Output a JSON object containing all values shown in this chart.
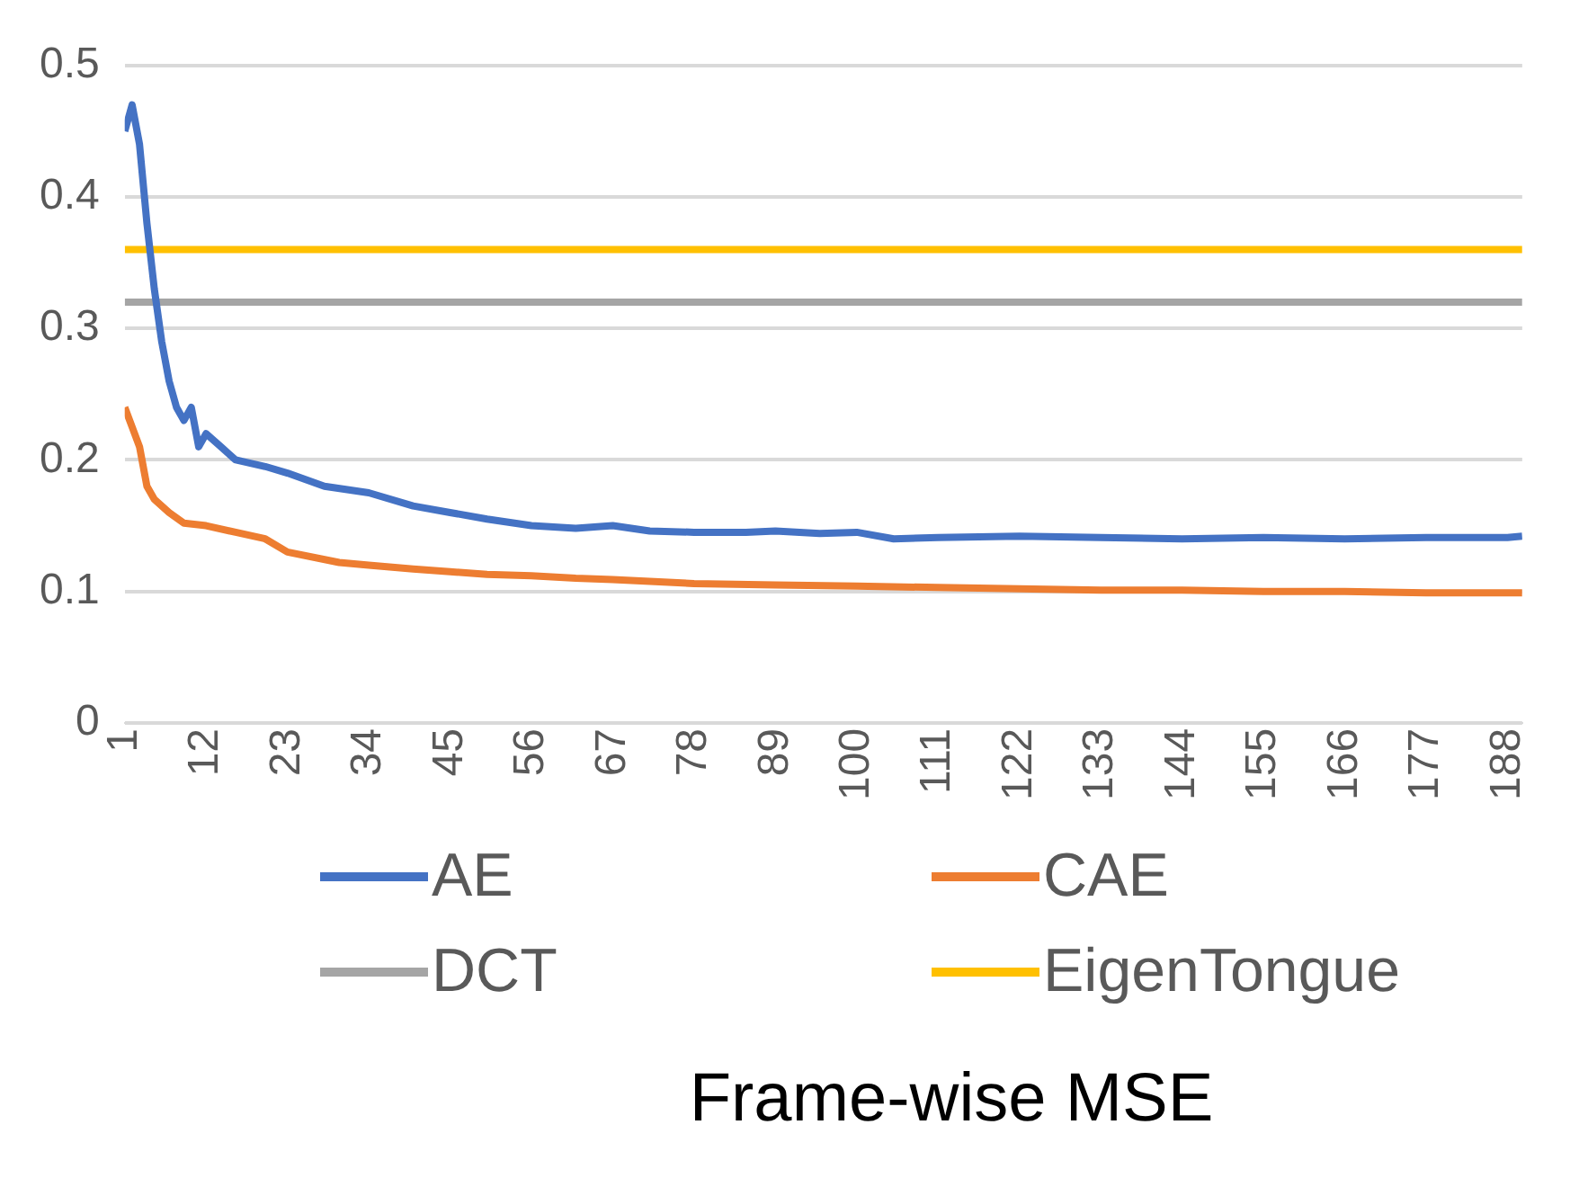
{
  "chart_data": {
    "type": "line",
    "title": "Frame-wise MSE",
    "xlim": [
      1,
      190
    ],
    "xticks": [
      1,
      12,
      23,
      34,
      45,
      56,
      67,
      78,
      89,
      100,
      111,
      122,
      133,
      144,
      155,
      166,
      177,
      188
    ],
    "ylim": [
      0,
      0.5
    ],
    "yticks": [
      0,
      0.1,
      0.2,
      0.3,
      0.4,
      0.5
    ],
    "grid": "y",
    "legend": "bottom",
    "marker": "none",
    "line_style": "solid",
    "series": [
      {
        "name": "AE",
        "color": "#4472c4",
        "x": [
          1,
          2,
          3,
          4,
          5,
          6,
          7,
          8,
          9,
          10,
          11,
          12,
          14,
          16,
          20,
          23,
          28,
          34,
          40,
          45,
          50,
          56,
          62,
          67,
          72,
          78,
          85,
          89,
          95,
          100,
          105,
          111,
          122,
          133,
          144,
          155,
          166,
          177,
          188,
          190
        ],
        "values": [
          0.45,
          0.47,
          0.44,
          0.38,
          0.33,
          0.29,
          0.26,
          0.24,
          0.23,
          0.24,
          0.21,
          0.22,
          0.21,
          0.2,
          0.195,
          0.19,
          0.18,
          0.175,
          0.165,
          0.16,
          0.155,
          0.15,
          0.148,
          0.15,
          0.146,
          0.145,
          0.145,
          0.146,
          0.144,
          0.145,
          0.14,
          0.141,
          0.142,
          0.141,
          0.14,
          0.141,
          0.14,
          0.141,
          0.141,
          0.142
        ]
      },
      {
        "name": "CAE",
        "color": "#ed7d31",
        "x": [
          1,
          2,
          3,
          4,
          5,
          7,
          9,
          12,
          16,
          20,
          23,
          30,
          34,
          40,
          45,
          50,
          56,
          62,
          67,
          78,
          89,
          100,
          111,
          122,
          133,
          144,
          155,
          166,
          177,
          188,
          190
        ],
        "values": [
          0.24,
          0.225,
          0.21,
          0.18,
          0.17,
          0.16,
          0.152,
          0.15,
          0.145,
          0.14,
          0.13,
          0.122,
          0.12,
          0.117,
          0.115,
          0.113,
          0.112,
          0.11,
          0.109,
          0.106,
          0.105,
          0.104,
          0.103,
          0.102,
          0.101,
          0.101,
          0.1,
          0.1,
          0.099,
          0.099,
          0.099
        ]
      },
      {
        "name": "DCT",
        "color": "#a5a5a5",
        "x": [
          1,
          190
        ],
        "values": [
          0.32,
          0.32
        ]
      },
      {
        "name": "EigenTongue",
        "color": "#ffc000",
        "x": [
          1,
          190
        ],
        "values": [
          0.36,
          0.36
        ]
      }
    ]
  }
}
